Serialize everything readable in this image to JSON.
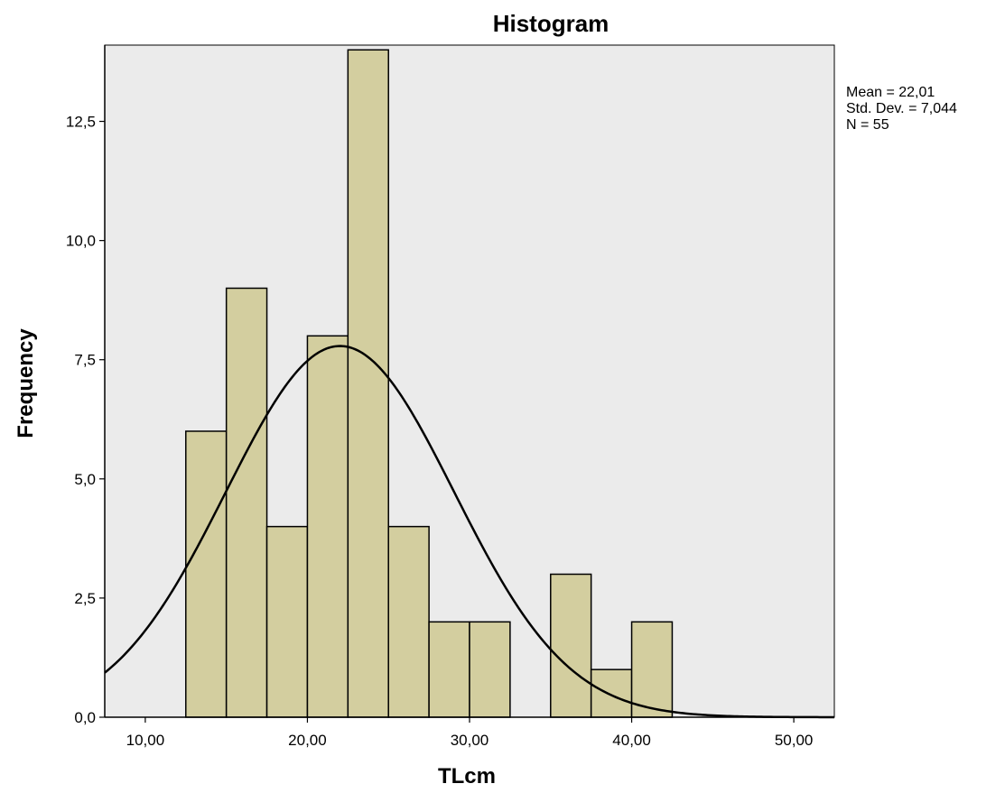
{
  "chart_data": {
    "type": "bar",
    "title": "Histogram",
    "xlabel": "TLcm",
    "ylabel": "Frequency",
    "xlim": [
      7.5,
      52.5
    ],
    "ylim": [
      0,
      14.1
    ],
    "bin_width": 2.5,
    "bins": [
      {
        "start": 12.5,
        "end": 15.0,
        "count": 6
      },
      {
        "start": 15.0,
        "end": 17.5,
        "count": 9
      },
      {
        "start": 17.5,
        "end": 20.0,
        "count": 4
      },
      {
        "start": 20.0,
        "end": 22.5,
        "count": 8
      },
      {
        "start": 22.5,
        "end": 25.0,
        "count": 14
      },
      {
        "start": 25.0,
        "end": 27.5,
        "count": 4
      },
      {
        "start": 27.5,
        "end": 30.0,
        "count": 2
      },
      {
        "start": 30.0,
        "end": 32.5,
        "count": 2
      },
      {
        "start": 35.0,
        "end": 37.5,
        "count": 3
      },
      {
        "start": 37.5,
        "end": 40.0,
        "count": 1
      },
      {
        "start": 40.0,
        "end": 42.5,
        "count": 2
      }
    ],
    "x_ticks": [
      {
        "value": 10,
        "label": "10,00"
      },
      {
        "value": 20,
        "label": "20,00"
      },
      {
        "value": 30,
        "label": "30,00"
      },
      {
        "value": 40,
        "label": "40,00"
      },
      {
        "value": 50,
        "label": "50,00"
      }
    ],
    "y_ticks": [
      {
        "value": 0,
        "label": "0,0"
      },
      {
        "value": 2.5,
        "label": "2,5"
      },
      {
        "value": 5,
        "label": "5,0"
      },
      {
        "value": 7.5,
        "label": "7,5"
      },
      {
        "value": 10,
        "label": "10,0"
      },
      {
        "value": 12.5,
        "label": "12,5"
      }
    ],
    "normal_curve": {
      "mean": 22.01,
      "std_dev": 7.044,
      "n": 55
    },
    "stats_text": [
      "Mean = 22,01",
      "Std. Dev. = 7,044",
      "N = 55"
    ],
    "grid": false,
    "colors": {
      "plot_background": "#ebebeb",
      "bar_fill": "#d3ce9f",
      "bar_stroke": "#000000",
      "curve": "#000000"
    }
  }
}
